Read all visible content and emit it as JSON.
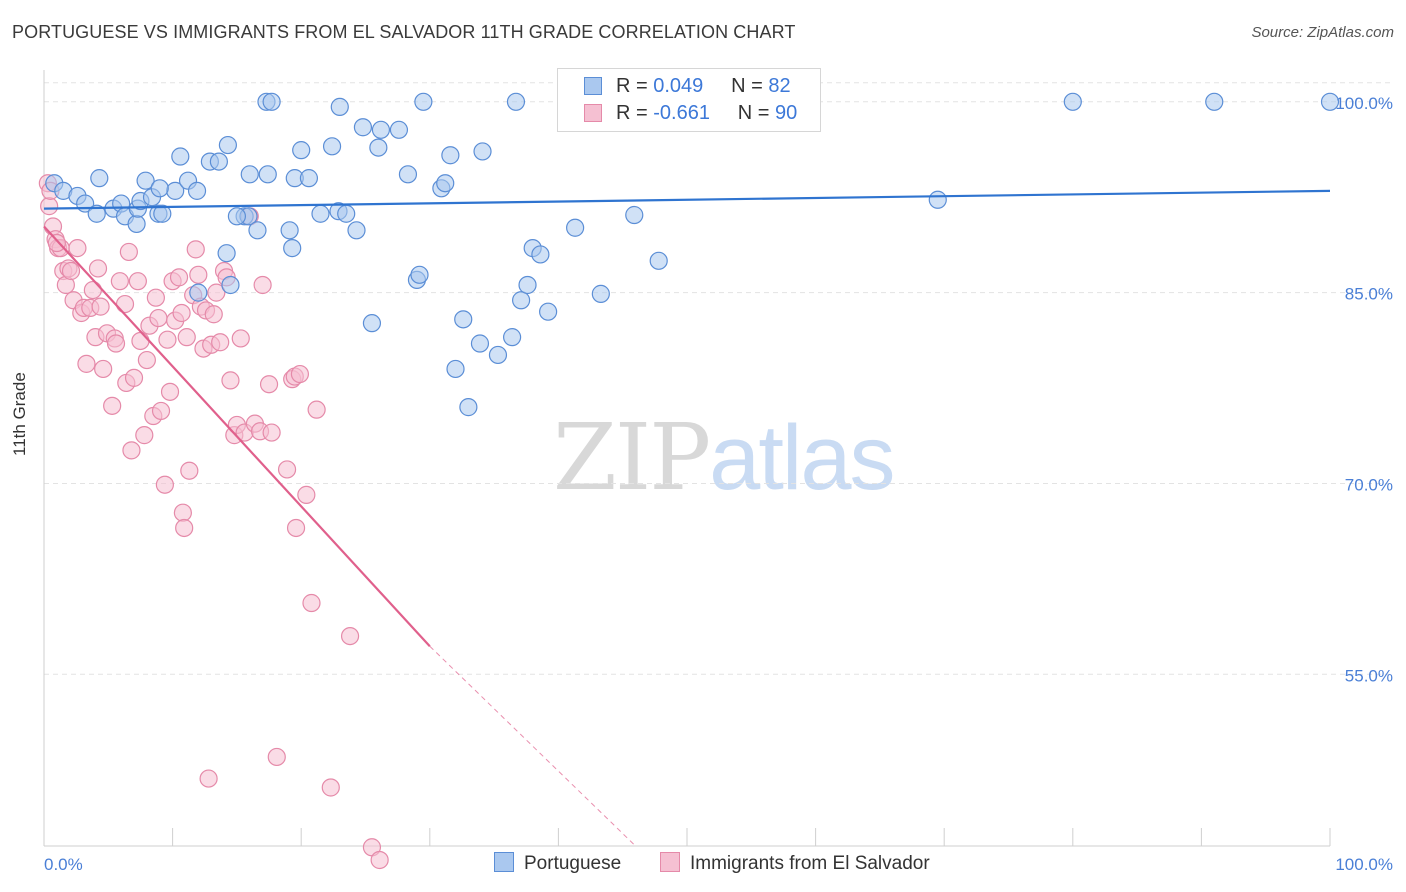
{
  "title": "PORTUGUESE VS IMMIGRANTS FROM EL SALVADOR 11TH GRADE CORRELATION CHART",
  "source": "Source: ZipAtlas.com",
  "watermark": {
    "zip": "ZIP",
    "atlas": "atlas"
  },
  "legend": {
    "row1": {
      "r_label": "R =",
      "r_value": "0.049",
      "n_label": "N =",
      "n_value": "82"
    },
    "row2": {
      "r_label": "R =",
      "r_value": "-0.661",
      "n_label": "N =",
      "n_value": "90"
    }
  },
  "bottom_legend": {
    "s1": "Portuguese",
    "s2": "Immigrants from El Salvador"
  },
  "colors": {
    "blue_fill": "#aac8ef",
    "blue_stroke": "#5b8ed6",
    "blue_line": "#2f74d0",
    "pink_fill": "#f5c0d2",
    "pink_stroke": "#e58aa9",
    "pink_line": "#e0608c",
    "tick_text": "#4a7fd6",
    "grid": "#e3e3e3"
  },
  "chart_data": {
    "type": "scatter",
    "title": "PORTUGUESE VS IMMIGRANTS FROM EL SALVADOR 11TH GRADE CORRELATION CHART",
    "xlabel": "",
    "ylabel": "11th Grade",
    "xlim": [
      0,
      100
    ],
    "ylim": [
      41.5,
      102.5
    ],
    "x_tick_labels": [
      "0.0%",
      "100.0%"
    ],
    "y_ticks": [
      55,
      70,
      85,
      100
    ],
    "y_tick_labels": [
      "55.0%",
      "70.0%",
      "85.0%",
      "100.0%"
    ],
    "grid": true,
    "legend_position": "top-center",
    "series": [
      {
        "name": "Portuguese",
        "R": 0.049,
        "N": 82,
        "trend": {
          "x": [
            0,
            100
          ],
          "y": [
            91.6,
            93.0
          ],
          "style": "solid"
        },
        "points": [
          [
            0.8,
            93.6
          ],
          [
            1.5,
            93.0
          ],
          [
            2.6,
            92.6
          ],
          [
            3.2,
            92.0
          ],
          [
            4.1,
            91.2
          ],
          [
            4.3,
            94.0
          ],
          [
            5.4,
            91.6
          ],
          [
            6.0,
            92.0
          ],
          [
            6.3,
            91.0
          ],
          [
            7.2,
            90.4
          ],
          [
            7.3,
            91.6
          ],
          [
            7.5,
            92.2
          ],
          [
            7.9,
            93.8
          ],
          [
            8.4,
            92.5
          ],
          [
            8.9,
            91.2
          ],
          [
            9.2,
            91.2
          ],
          [
            10.2,
            93.0
          ],
          [
            10.6,
            95.7
          ],
          [
            11.2,
            93.8
          ],
          [
            11.9,
            93.0
          ],
          [
            12.9,
            95.3
          ],
          [
            13.6,
            95.3
          ],
          [
            14.2,
            88.1
          ],
          [
            14.3,
            96.6
          ],
          [
            14.5,
            85.6
          ],
          [
            15.6,
            91.0
          ],
          [
            15.9,
            91.0
          ],
          [
            16.0,
            94.3
          ],
          [
            16.6,
            89.9
          ],
          [
            17.4,
            94.3
          ],
          [
            19.1,
            89.9
          ],
          [
            19.3,
            88.5
          ],
          [
            19.5,
            94.0
          ],
          [
            20.0,
            96.2
          ],
          [
            20.6,
            94.0
          ],
          [
            21.5,
            91.2
          ],
          [
            22.4,
            96.5
          ],
          [
            22.9,
            91.4
          ],
          [
            23.5,
            91.2
          ],
          [
            24.3,
            89.9
          ],
          [
            24.8,
            98.0
          ],
          [
            25.5,
            82.6
          ],
          [
            26.0,
            96.4
          ],
          [
            26.2,
            97.8
          ],
          [
            27.6,
            97.8
          ],
          [
            28.3,
            94.3
          ],
          [
            29.0,
            86.0
          ],
          [
            29.2,
            86.4
          ],
          [
            30.9,
            93.2
          ],
          [
            31.2,
            93.6
          ],
          [
            31.6,
            95.8
          ],
          [
            32.6,
            82.9
          ],
          [
            33.9,
            81.0
          ],
          [
            34.1,
            96.1
          ],
          [
            35.3,
            80.1
          ],
          [
            36.4,
            81.5
          ],
          [
            37.1,
            84.4
          ],
          [
            37.6,
            85.6
          ],
          [
            38.0,
            88.5
          ],
          [
            38.6,
            88.0
          ],
          [
            39.2,
            83.5
          ],
          [
            41.3,
            90.1
          ],
          [
            43.3,
            84.9
          ],
          [
            45.9,
            91.1
          ],
          [
            47.8,
            87.5
          ],
          [
            51.0,
            100.0
          ],
          [
            69.5,
            92.3
          ],
          [
            80.0,
            100.0
          ],
          [
            91.0,
            100.0
          ],
          [
            100.0,
            100.0
          ],
          [
            17.3,
            100.0
          ],
          [
            17.7,
            100.0
          ],
          [
            23.0,
            99.6
          ],
          [
            29.5,
            100.0
          ],
          [
            36.7,
            100.0
          ],
          [
            45.0,
            100.0
          ],
          [
            32.0,
            79.0
          ],
          [
            33.0,
            76.0
          ],
          [
            44.0,
            100.0
          ],
          [
            9.0,
            93.2
          ],
          [
            12.0,
            85.0
          ],
          [
            15.0,
            91.0
          ]
        ]
      },
      {
        "name": "Immigrants from El Salvador",
        "R": -0.661,
        "N": 90,
        "trend": {
          "x": [
            0,
            30.0,
            46.0
          ],
          "y": [
            90.2,
            57.2,
            41.5
          ],
          "style": "solid-then-dashed"
        },
        "points": [
          [
            0.3,
            93.6
          ],
          [
            0.4,
            91.8
          ],
          [
            0.7,
            90.2
          ],
          [
            0.9,
            89.2
          ],
          [
            1.1,
            88.5
          ],
          [
            1.3,
            88.5
          ],
          [
            1.5,
            86.7
          ],
          [
            1.7,
            85.6
          ],
          [
            1.9,
            86.9
          ],
          [
            2.1,
            86.7
          ],
          [
            2.3,
            84.4
          ],
          [
            2.6,
            88.5
          ],
          [
            2.9,
            83.4
          ],
          [
            3.1,
            83.8
          ],
          [
            3.3,
            79.4
          ],
          [
            3.6,
            83.8
          ],
          [
            3.8,
            85.2
          ],
          [
            4.0,
            81.5
          ],
          [
            4.2,
            86.9
          ],
          [
            4.4,
            83.9
          ],
          [
            4.6,
            79.0
          ],
          [
            4.9,
            81.8
          ],
          [
            5.3,
            76.1
          ],
          [
            5.5,
            81.4
          ],
          [
            5.6,
            81.0
          ],
          [
            5.9,
            85.9
          ],
          [
            6.3,
            84.1
          ],
          [
            6.4,
            77.9
          ],
          [
            6.6,
            88.2
          ],
          [
            6.8,
            72.6
          ],
          [
            7.0,
            78.3
          ],
          [
            7.3,
            85.9
          ],
          [
            7.5,
            81.2
          ],
          [
            7.8,
            73.8
          ],
          [
            8.0,
            79.7
          ],
          [
            8.2,
            82.4
          ],
          [
            8.5,
            75.3
          ],
          [
            8.7,
            84.6
          ],
          [
            8.9,
            83.0
          ],
          [
            9.1,
            75.7
          ],
          [
            9.4,
            69.9
          ],
          [
            9.6,
            81.3
          ],
          [
            9.8,
            77.2
          ],
          [
            10.0,
            85.9
          ],
          [
            10.2,
            82.8
          ],
          [
            10.5,
            86.2
          ],
          [
            10.7,
            83.4
          ],
          [
            10.8,
            67.7
          ],
          [
            10.9,
            66.5
          ],
          [
            11.1,
            81.5
          ],
          [
            11.3,
            71.0
          ],
          [
            11.6,
            84.8
          ],
          [
            11.8,
            88.4
          ],
          [
            12.0,
            86.4
          ],
          [
            12.2,
            83.9
          ],
          [
            12.4,
            80.6
          ],
          [
            12.6,
            83.6
          ],
          [
            12.8,
            46.8
          ],
          [
            13.0,
            80.9
          ],
          [
            13.2,
            83.3
          ],
          [
            13.4,
            85.0
          ],
          [
            13.7,
            81.1
          ],
          [
            14.0,
            86.7
          ],
          [
            14.2,
            86.2
          ],
          [
            14.5,
            78.1
          ],
          [
            14.8,
            73.8
          ],
          [
            15.0,
            74.6
          ],
          [
            15.3,
            81.4
          ],
          [
            15.6,
            74.0
          ],
          [
            16.0,
            91.0
          ],
          [
            16.4,
            74.7
          ],
          [
            16.8,
            74.1
          ],
          [
            17.0,
            85.6
          ],
          [
            17.5,
            77.8
          ],
          [
            17.7,
            74.0
          ],
          [
            18.1,
            48.5
          ],
          [
            18.9,
            71.1
          ],
          [
            19.3,
            78.2
          ],
          [
            19.5,
            78.4
          ],
          [
            19.6,
            66.5
          ],
          [
            19.9,
            78.6
          ],
          [
            20.4,
            69.1
          ],
          [
            20.8,
            60.6
          ],
          [
            21.2,
            75.8
          ],
          [
            22.3,
            46.1
          ],
          [
            23.8,
            58.0
          ],
          [
            25.5,
            41.4
          ],
          [
            26.1,
            40.4
          ],
          [
            0.5,
            93.0
          ],
          [
            1.0,
            88.9
          ]
        ]
      }
    ]
  }
}
